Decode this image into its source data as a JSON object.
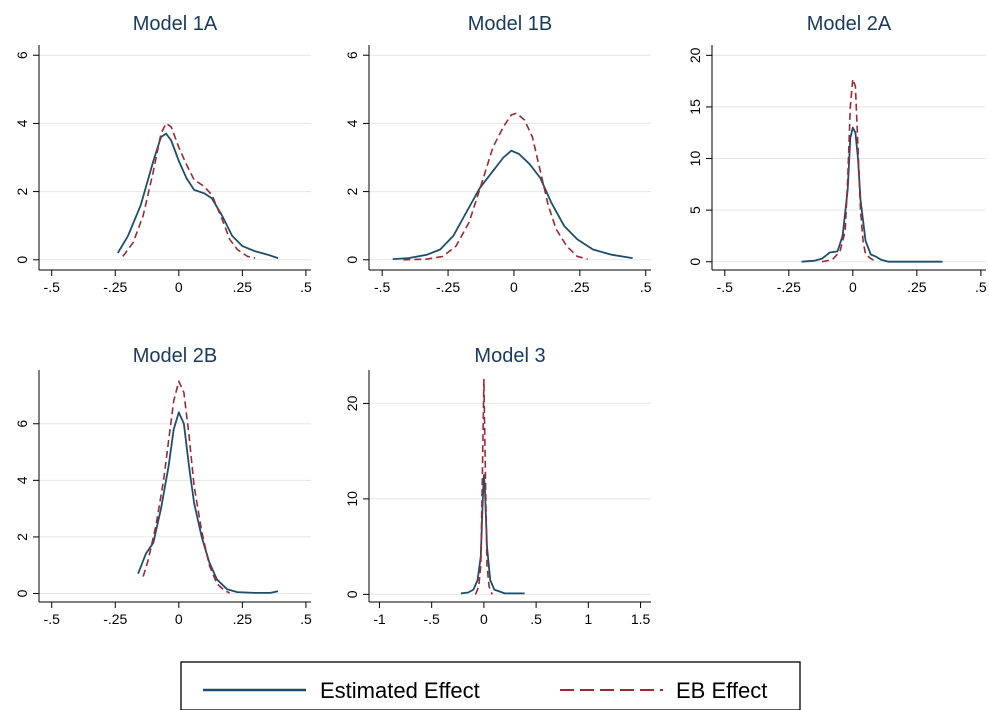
{
  "colors": {
    "estimated": "#1f4e6b",
    "eb": "#9b2a35",
    "grid": "#e6e6e6",
    "axis": "#000000",
    "title": "#1a3a5c"
  },
  "legend": {
    "placement": "bottom-center",
    "items": [
      {
        "label": "Estimated Effect",
        "style": "solid",
        "color": "#1f4e6b"
      },
      {
        "label": "EB Effect",
        "style": "dashed",
        "color": "#9b2a35"
      }
    ]
  },
  "chart_data": [
    {
      "type": "line",
      "title": "Model 1A",
      "xticks": [
        -0.5,
        -0.25,
        0,
        0.25,
        0.5
      ],
      "xtick_labels": [
        "-.5",
        "-.25",
        "0",
        ".25",
        ".5"
      ],
      "yticks": [
        0,
        2,
        4,
        6
      ],
      "ytick_labels": [
        "0",
        "2",
        "4",
        "6"
      ],
      "xlim": [
        -0.55,
        0.52
      ],
      "ylim": [
        -0.3,
        6.3
      ],
      "grid": true,
      "series": [
        {
          "name": "Estimated Effect",
          "points": [
            [
              -0.24,
              0.2
            ],
            [
              -0.2,
              0.7
            ],
            [
              -0.15,
              1.6
            ],
            [
              -0.1,
              2.9
            ],
            [
              -0.07,
              3.6
            ],
            [
              -0.05,
              3.7
            ],
            [
              -0.03,
              3.5
            ],
            [
              0,
              2.9
            ],
            [
              0.03,
              2.4
            ],
            [
              0.06,
              2.05
            ],
            [
              0.1,
              1.95
            ],
            [
              0.13,
              1.8
            ],
            [
              0.17,
              1.3
            ],
            [
              0.21,
              0.7
            ],
            [
              0.25,
              0.4
            ],
            [
              0.3,
              0.25
            ],
            [
              0.35,
              0.15
            ],
            [
              0.39,
              0.05
            ]
          ]
        },
        {
          "name": "EB Effect",
          "points": [
            [
              -0.22,
              0.1
            ],
            [
              -0.18,
              0.5
            ],
            [
              -0.14,
              1.3
            ],
            [
              -0.1,
              2.6
            ],
            [
              -0.07,
              3.7
            ],
            [
              -0.05,
              4.0
            ],
            [
              -0.03,
              3.9
            ],
            [
              0,
              3.3
            ],
            [
              0.03,
              2.8
            ],
            [
              0.06,
              2.35
            ],
            [
              0.1,
              2.15
            ],
            [
              0.13,
              1.9
            ],
            [
              0.17,
              1.2
            ],
            [
              0.2,
              0.6
            ],
            [
              0.23,
              0.3
            ],
            [
              0.27,
              0.1
            ],
            [
              0.3,
              0.05
            ]
          ]
        }
      ]
    },
    {
      "type": "line",
      "title": "Model 1B",
      "xticks": [
        -0.5,
        -0.25,
        0,
        0.25,
        0.5
      ],
      "xtick_labels": [
        "-.5",
        "-.25",
        "0",
        ".25",
        ".5"
      ],
      "yticks": [
        0,
        2,
        4,
        6
      ],
      "ytick_labels": [
        "0",
        "2",
        "4",
        "6"
      ],
      "xlim": [
        -0.55,
        0.52
      ],
      "ylim": [
        -0.3,
        6.3
      ],
      "grid": true,
      "series": [
        {
          "name": "Estimated Effect",
          "points": [
            [
              -0.46,
              0.02
            ],
            [
              -0.4,
              0.05
            ],
            [
              -0.33,
              0.15
            ],
            [
              -0.28,
              0.3
            ],
            [
              -0.23,
              0.7
            ],
            [
              -0.18,
              1.4
            ],
            [
              -0.13,
              2.1
            ],
            [
              -0.08,
              2.6
            ],
            [
              -0.04,
              3.0
            ],
            [
              -0.01,
              3.2
            ],
            [
              0.02,
              3.1
            ],
            [
              0.06,
              2.8
            ],
            [
              0.1,
              2.4
            ],
            [
              0.14,
              1.7
            ],
            [
              0.19,
              1.0
            ],
            [
              0.24,
              0.6
            ],
            [
              0.3,
              0.3
            ],
            [
              0.37,
              0.15
            ],
            [
              0.45,
              0.05
            ]
          ]
        },
        {
          "name": "EB Effect",
          "points": [
            [
              -0.42,
              0.0
            ],
            [
              -0.33,
              0.02
            ],
            [
              -0.27,
              0.1
            ],
            [
              -0.22,
              0.4
            ],
            [
              -0.17,
              1.1
            ],
            [
              -0.12,
              2.3
            ],
            [
              -0.08,
              3.3
            ],
            [
              -0.04,
              3.9
            ],
            [
              -0.01,
              4.25
            ],
            [
              0.01,
              4.3
            ],
            [
              0.04,
              4.1
            ],
            [
              0.07,
              3.6
            ],
            [
              0.1,
              2.6
            ],
            [
              0.13,
              1.6
            ],
            [
              0.16,
              0.9
            ],
            [
              0.2,
              0.4
            ],
            [
              0.24,
              0.1
            ],
            [
              0.28,
              0.02
            ]
          ]
        }
      ]
    },
    {
      "type": "line",
      "title": "Model 2A",
      "xticks": [
        -0.5,
        -0.25,
        0,
        0.25,
        0.5
      ],
      "xtick_labels": [
        "-.5",
        "-.25",
        "0",
        ".25",
        ".5"
      ],
      "yticks": [
        0,
        5,
        10,
        15,
        20
      ],
      "ytick_labels": [
        "0",
        "5",
        "10",
        "15",
        "20"
      ],
      "xlim": [
        -0.55,
        0.52
      ],
      "ylim": [
        -0.8,
        21
      ],
      "grid": true,
      "series": [
        {
          "name": "Estimated Effect",
          "points": [
            [
              -0.2,
              0.0
            ],
            [
              -0.15,
              0.1
            ],
            [
              -0.12,
              0.3
            ],
            [
              -0.09,
              0.9
            ],
            [
              -0.06,
              1.0
            ],
            [
              -0.04,
              2.5
            ],
            [
              -0.02,
              7.0
            ],
            [
              -0.01,
              12.0
            ],
            [
              0.0,
              13.0
            ],
            [
              0.01,
              12.5
            ],
            [
              0.02,
              10.0
            ],
            [
              0.03,
              6.0
            ],
            [
              0.05,
              2.0
            ],
            [
              0.07,
              0.7
            ],
            [
              0.09,
              0.5
            ],
            [
              0.11,
              0.2
            ],
            [
              0.14,
              0.0
            ],
            [
              0.2,
              0.0
            ],
            [
              0.35,
              0.0
            ]
          ]
        },
        {
          "name": "EB Effect",
          "points": [
            [
              -0.12,
              0.0
            ],
            [
              -0.08,
              0.2
            ],
            [
              -0.05,
              1.0
            ],
            [
              -0.03,
              3.0
            ],
            [
              -0.02,
              8.0
            ],
            [
              -0.01,
              15.0
            ],
            [
              0.0,
              17.7
            ],
            [
              0.01,
              17.0
            ],
            [
              0.02,
              11.0
            ],
            [
              0.03,
              5.0
            ],
            [
              0.04,
              2.0
            ],
            [
              0.05,
              0.7
            ],
            [
              0.07,
              0.3
            ],
            [
              0.09,
              0.0
            ]
          ]
        }
      ]
    },
    {
      "type": "line",
      "title": "Model 2B",
      "xticks": [
        -0.5,
        -0.25,
        0,
        0.25,
        0.5
      ],
      "xtick_labels": [
        "-.5",
        "-.25",
        "0",
        ".25",
        ".5"
      ],
      "yticks": [
        0,
        2,
        4,
        6
      ],
      "ytick_labels": [
        "0",
        "2",
        "4",
        "6"
      ],
      "xlim": [
        -0.55,
        0.52
      ],
      "ylim": [
        -0.3,
        7.9
      ],
      "grid": true,
      "series": [
        {
          "name": "Estimated Effect",
          "points": [
            [
              -0.16,
              0.7
            ],
            [
              -0.13,
              1.4
            ],
            [
              -0.1,
              1.8
            ],
            [
              -0.07,
              3.0
            ],
            [
              -0.04,
              4.5
            ],
            [
              -0.02,
              5.8
            ],
            [
              0.0,
              6.4
            ],
            [
              0.02,
              6.0
            ],
            [
              0.04,
              4.5
            ],
            [
              0.06,
              3.2
            ],
            [
              0.09,
              2.0
            ],
            [
              0.12,
              1.1
            ],
            [
              0.15,
              0.5
            ],
            [
              0.19,
              0.15
            ],
            [
              0.23,
              0.05
            ],
            [
              0.3,
              0.02
            ],
            [
              0.36,
              0.02
            ],
            [
              0.39,
              0.08
            ]
          ]
        },
        {
          "name": "EB Effect",
          "points": [
            [
              -0.14,
              0.6
            ],
            [
              -0.12,
              1.2
            ],
            [
              -0.09,
              2.4
            ],
            [
              -0.06,
              4.0
            ],
            [
              -0.04,
              5.4
            ],
            [
              -0.02,
              6.8
            ],
            [
              0.0,
              7.5
            ],
            [
              0.02,
              7.1
            ],
            [
              0.04,
              5.6
            ],
            [
              0.06,
              3.8
            ],
            [
              0.09,
              2.2
            ],
            [
              0.12,
              1.0
            ],
            [
              0.15,
              0.35
            ],
            [
              0.18,
              0.1
            ],
            [
              0.2,
              0.02
            ]
          ]
        }
      ]
    },
    {
      "type": "line",
      "title": "Model 3",
      "xticks": [
        -1,
        -0.5,
        0,
        0.5,
        1,
        1.5
      ],
      "xtick_labels": [
        "-1",
        "-.5",
        "0",
        ".5",
        "1",
        "1.5"
      ],
      "yticks": [
        0,
        10,
        20
      ],
      "ytick_labels": [
        "0",
        "10",
        "20"
      ],
      "xlim": [
        -1.1,
        1.6
      ],
      "ylim": [
        -0.8,
        23.5
      ],
      "grid": true,
      "series": [
        {
          "name": "Estimated Effect",
          "points": [
            [
              -0.22,
              0.1
            ],
            [
              -0.15,
              0.2
            ],
            [
              -0.1,
              0.5
            ],
            [
              -0.06,
              1.5
            ],
            [
              -0.03,
              4.0
            ],
            [
              -0.01,
              10.0
            ],
            [
              0.0,
              12.5
            ],
            [
              0.01,
              11.0
            ],
            [
              0.03,
              5.0
            ],
            [
              0.06,
              1.5
            ],
            [
              0.1,
              0.5
            ],
            [
              0.15,
              0.3
            ],
            [
              0.2,
              0.1
            ],
            [
              0.3,
              0.1
            ],
            [
              0.39,
              0.1
            ]
          ]
        },
        {
          "name": "EB Effect",
          "points": [
            [
              -0.08,
              0.0
            ],
            [
              -0.05,
              0.8
            ],
            [
              -0.03,
              3.0
            ],
            [
              -0.015,
              12.0
            ],
            [
              0.0,
              22.5
            ],
            [
              0.015,
              12.0
            ],
            [
              0.03,
              3.0
            ],
            [
              0.05,
              0.8
            ],
            [
              0.08,
              0.0
            ]
          ]
        }
      ]
    }
  ]
}
